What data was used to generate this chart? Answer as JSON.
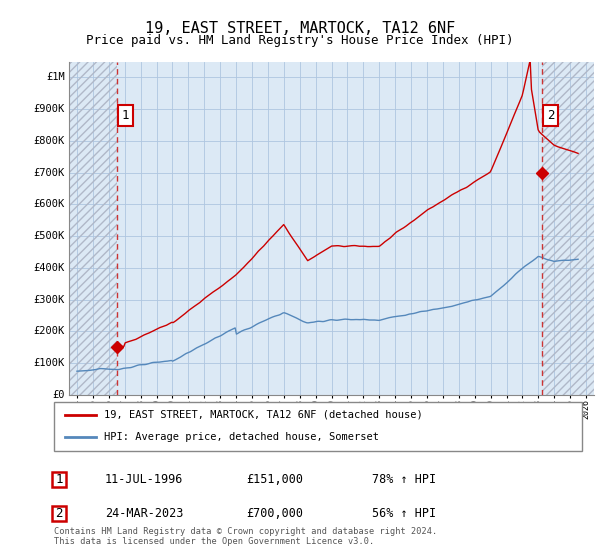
{
  "title": "19, EAST STREET, MARTOCK, TA12 6NF",
  "subtitle": "Price paid vs. HM Land Registry's House Price Index (HPI)",
  "legend_line1": "19, EAST STREET, MARTOCK, TA12 6NF (detached house)",
  "legend_line2": "HPI: Average price, detached house, Somerset",
  "footnote": "Contains HM Land Registry data © Crown copyright and database right 2024.\nThis data is licensed under the Open Government Licence v3.0.",
  "sale1_label": "1",
  "sale1_date": "11-JUL-1996",
  "sale1_price": "£151,000",
  "sale1_hpi": "78% ↑ HPI",
  "sale1_year": 1996.53,
  "sale1_value": 151000,
  "sale2_label": "2",
  "sale2_date": "24-MAR-2023",
  "sale2_price": "£700,000",
  "sale2_hpi": "56% ↑ HPI",
  "sale2_year": 2023.23,
  "sale2_value": 700000,
  "ylim": [
    0,
    1050000
  ],
  "xlim": [
    1993.5,
    2026.5
  ],
  "background_color": "#ffffff",
  "chart_bg_color": "#dce9f5",
  "grid_color": "#aec6e0",
  "hatch_color": "#b0b8c8",
  "red_line_color": "#cc0000",
  "blue_line_color": "#5588bb",
  "red_dashed_color": "#cc3333",
  "title_fontsize": 11,
  "subtitle_fontsize": 9,
  "ytick_labels": [
    "£0",
    "£100K",
    "£200K",
    "£300K",
    "£400K",
    "£500K",
    "£600K",
    "£700K",
    "£800K",
    "£900K",
    "£1M"
  ],
  "ytick_values": [
    0,
    100000,
    200000,
    300000,
    400000,
    500000,
    600000,
    700000,
    800000,
    900000,
    1000000
  ]
}
